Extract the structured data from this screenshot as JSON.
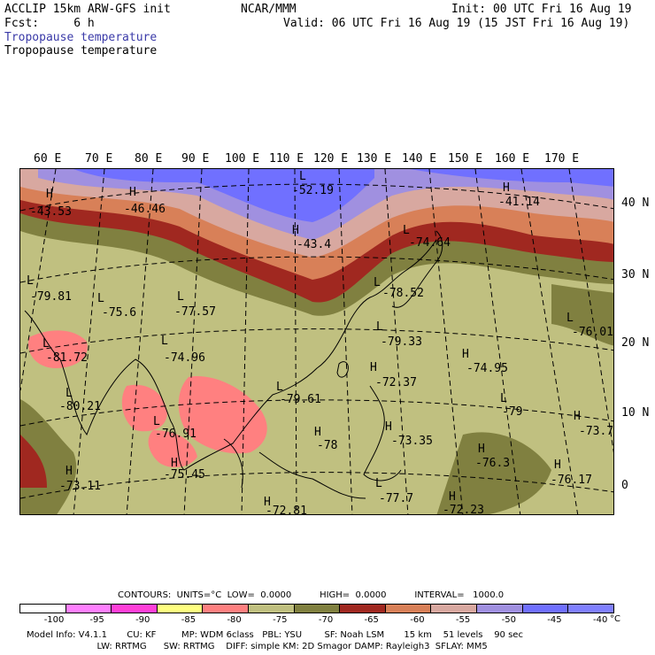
{
  "header": {
    "line1_left": "ACCLIP 15km ARW-GFS init",
    "line1_mid": "NCAR/MMM",
    "line1_right": "Init: 00 UTC Fri 16 Aug 19",
    "line2_left": "Fcst:     6 h",
    "line2_right": "Valid: 06 UTC Fri 16 Aug 19 (15 JST Fri 16 Aug 19)",
    "field_title_1": "Tropopause temperature",
    "field_title_2": "Tropopause temperature"
  },
  "axes": {
    "longitudes": [
      "60 E",
      "70 E",
      "80 E",
      "90 E",
      "100 E",
      "110 E",
      "120 E",
      "130 E",
      "140 E",
      "150 E",
      "160 E",
      "170 E"
    ],
    "latitudes": [
      "40 N",
      "30 N",
      "20 N",
      "10 N",
      "0"
    ]
  },
  "map_labels": {
    "high_low": [
      {
        "type": "H",
        "value": "-43.53"
      },
      {
        "type": "H",
        "value": "-46.46"
      },
      {
        "type": "L",
        "value": "-52.19"
      },
      {
        "type": "H",
        "value": "-43.4"
      },
      {
        "type": "L",
        "value": "-74.64"
      },
      {
        "type": "H",
        "value": "-41.14"
      },
      {
        "type": "L",
        "value": "-79.81"
      },
      {
        "type": "L",
        "value": "-75.6"
      },
      {
        "type": "L",
        "value": "-77.57"
      },
      {
        "type": "L",
        "value": "-78.52"
      },
      {
        "type": "L",
        "value": "-81.72"
      },
      {
        "type": "L",
        "value": "-74.96"
      },
      {
        "type": "L",
        "value": "-79.33"
      },
      {
        "type": "L",
        "value": "-76.01"
      },
      {
        "type": "H",
        "value": "-74.95"
      },
      {
        "type": "L",
        "value": "-80.21"
      },
      {
        "type": "L",
        "value": "-79.61"
      },
      {
        "type": "H",
        "value": "-72.37"
      },
      {
        "type": "L",
        "value": "-79"
      },
      {
        "type": "H",
        "value": "-73.7"
      },
      {
        "type": "L",
        "value": "-76.91"
      },
      {
        "type": "H",
        "value": "-73.35"
      },
      {
        "type": "H",
        "value": "-78"
      },
      {
        "type": "H",
        "value": "-76.3"
      },
      {
        "type": "H",
        "value": "-76.17"
      },
      {
        "type": "H",
        "value": "-73.11"
      },
      {
        "type": "H",
        "value": "-75.45"
      },
      {
        "type": "L",
        "value": "-77.7"
      },
      {
        "type": "H",
        "value": "-72.23"
      },
      {
        "type": "H",
        "value": "-72.81"
      }
    ]
  },
  "legend": {
    "contours_line": "CONTOURS:  UNITS=°C  LOW=  0.0000          HIGH=  0.0000          INTERVAL=   1000.0",
    "colors": [
      "#ffffff",
      "#ff80ff",
      "#ff40d8",
      "#ffff80",
      "#ff8080",
      "#c0c080",
      "#808040",
      "#a02820",
      "#d88058",
      "#d8a8a0",
      "#a090e0",
      "#7070ff",
      "#8080ff"
    ],
    "ticks": [
      "-100",
      "-95",
      "-90",
      "-85",
      "-80",
      "-75",
      "-70",
      "-65",
      "-60",
      "-55",
      "-50",
      "-45",
      "-40"
    ],
    "unit": "°C"
  },
  "footer": {
    "line1": "Model Info: V4.1.1       CU: KF         MP: WDM 6class   PBL: YSU        SF: Noah LSM       15 km    51 levels    90 sec",
    "line2": "                         LW: RRTMG      SW: RRTMG    DIFF: simple KM: 2D Smagor DAMP: Rayleigh3  SFLAY: MM5"
  }
}
